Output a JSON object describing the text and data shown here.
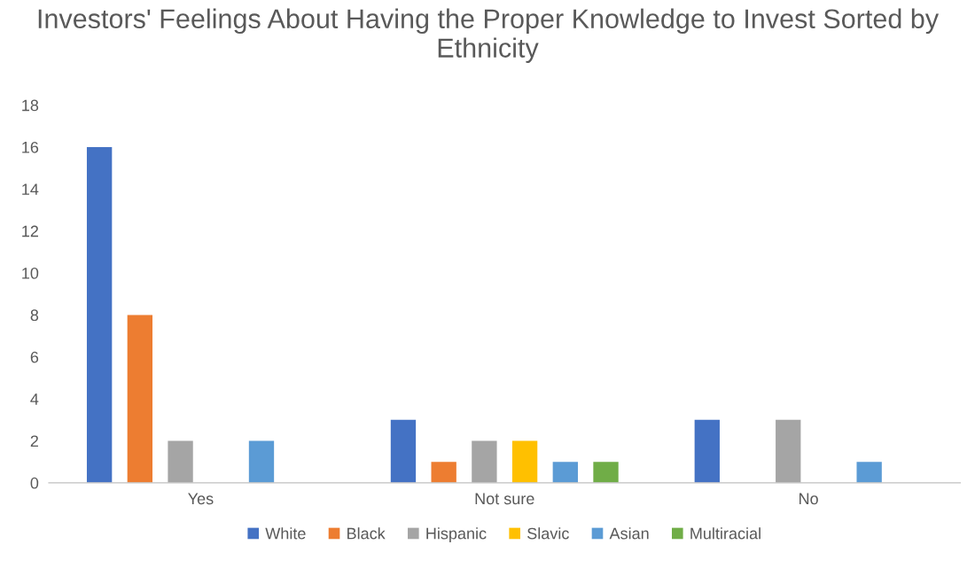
{
  "chart_data": {
    "type": "bar",
    "title": "Investors' Feelings About Having the Proper Knowledge to Invest Sorted by Ethnicity",
    "categories": [
      "Yes",
      "Not sure",
      "No"
    ],
    "series": [
      {
        "name": "White",
        "color": "#4472c4",
        "values": [
          16,
          3,
          3
        ]
      },
      {
        "name": "Black",
        "color": "#ed7d31",
        "values": [
          8,
          1,
          0
        ]
      },
      {
        "name": "Hispanic",
        "color": "#a5a5a5",
        "values": [
          2,
          2,
          3
        ]
      },
      {
        "name": "Slavic",
        "color": "#ffc000",
        "values": [
          0,
          2,
          0
        ]
      },
      {
        "name": "Asian",
        "color": "#5b9bd5",
        "values": [
          2,
          1,
          1
        ]
      },
      {
        "name": "Multiracial",
        "color": "#70ad47",
        "values": [
          0,
          1,
          0
        ]
      }
    ],
    "ylim": [
      0,
      18
    ],
    "yticks": [
      0,
      2,
      4,
      6,
      8,
      10,
      12,
      14,
      16,
      18
    ],
    "grid": false,
    "legend": "bottom"
  }
}
